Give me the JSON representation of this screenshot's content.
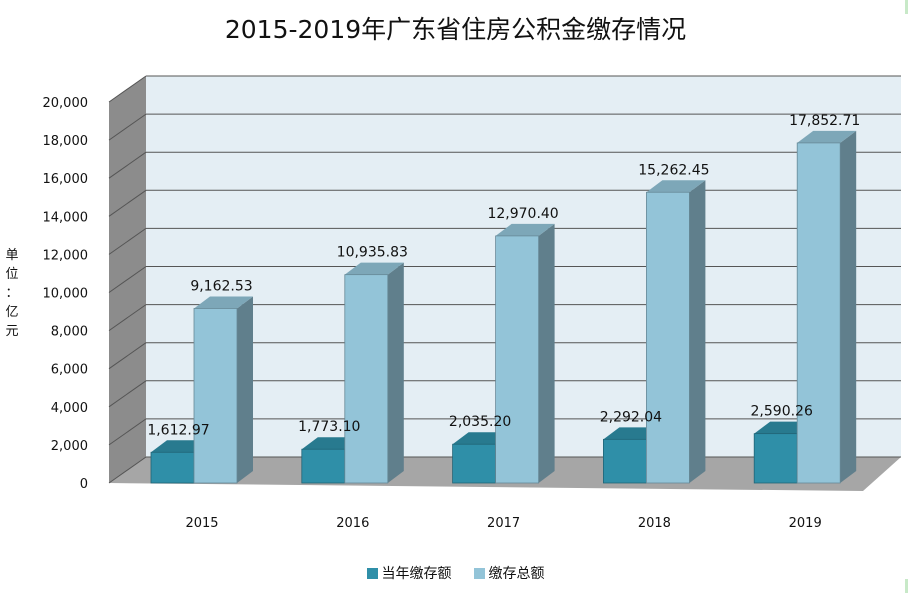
{
  "chart_data": {
    "type": "bar",
    "title": "2015-2019年广东省住房公积金缴存情况",
    "ylabel": "单位：亿元",
    "xlabel": "",
    "categories": [
      "2015",
      "2016",
      "2017",
      "2018",
      "2019"
    ],
    "series": [
      {
        "name": "当年缴存额",
        "color": "#2f8fa8",
        "values": [
          1612.97,
          1773.1,
          2035.2,
          2292.04,
          2590.26
        ],
        "labels": [
          "1,612.97",
          "1,773.10",
          "2,035.20",
          "2,292.04",
          "2,590.26"
        ]
      },
      {
        "name": "缴存总额",
        "color": "#93c4d8",
        "values": [
          9162.53,
          10935.83,
          12970.4,
          15262.45,
          17852.71
        ],
        "labels": [
          "9,162.53",
          "10,935.83",
          "12,970.40",
          "15,262.45",
          "17,852.71"
        ]
      }
    ],
    "ylim": [
      0,
      20000
    ],
    "yticks": [
      0,
      2000,
      4000,
      6000,
      8000,
      10000,
      12000,
      14000,
      16000,
      18000,
      20000
    ],
    "ytick_labels": [
      "0",
      "2,000",
      "4,000",
      "6,000",
      "8,000",
      "10,000",
      "12,000",
      "14,000",
      "16,000",
      "18,000",
      "20,000"
    ],
    "grid": true,
    "legend_position": "bottom",
    "style": "3d-clustered-column"
  }
}
